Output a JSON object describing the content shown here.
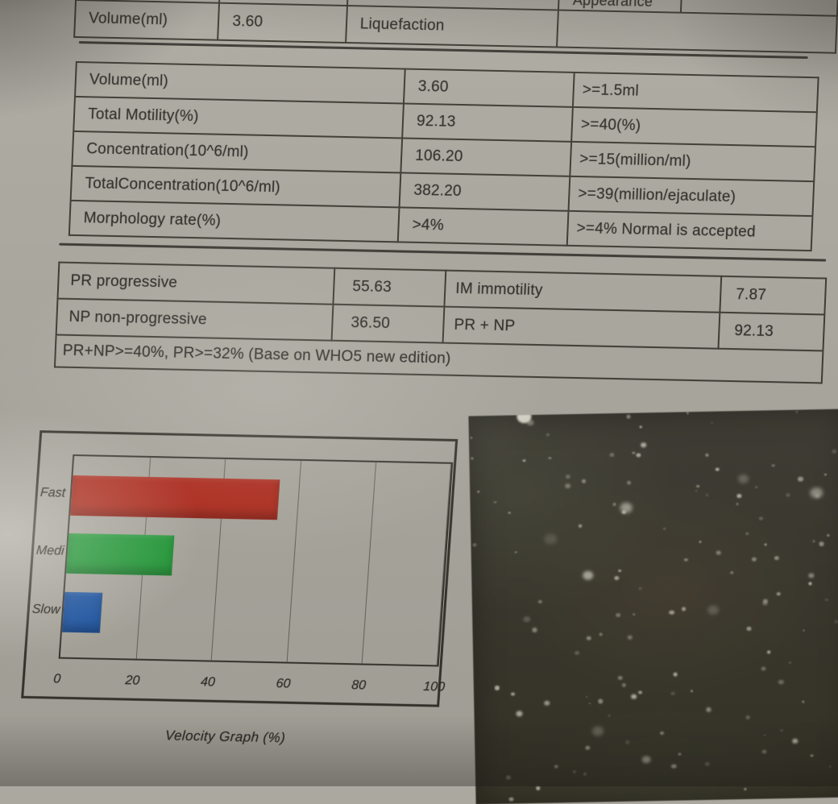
{
  "report": {
    "top_table": {
      "header": {
        "appearance": "Appearance"
      },
      "row": {
        "col1": "Volume(ml)",
        "col2": "3.60",
        "col3": "Liquefaction",
        "col4": ""
      }
    },
    "results_table": {
      "rows": [
        {
          "param": "Volume(ml)",
          "value": "3.60",
          "reference": ">=1.5ml"
        },
        {
          "param": "Total Motility(%)",
          "value": "92.13",
          "reference": ">=40(%)"
        },
        {
          "param": "Concentration(10^6/ml)",
          "value": "106.20",
          "reference": ">=15(million/ml)"
        },
        {
          "param": "TotalConcentration(10^6/ml)",
          "value": "382.20",
          "reference": ">=39(million/ejaculate)"
        },
        {
          "param": "Morphology rate(%)",
          "value": ">4%",
          "reference": ">=4% Normal is accepted"
        }
      ]
    },
    "motility_table": {
      "rows": [
        {
          "param1": "PR progressive",
          "value1": "55.63",
          "param2": "IM immotility",
          "value2": "7.87"
        },
        {
          "param1": "NP non-progressive",
          "value1": "36.50",
          "param2": "PR + NP",
          "value2": "92.13"
        }
      ],
      "footnote": "PR+NP>=40%, PR>=32% (Base on WHO5 new edition)"
    }
  },
  "chart_data": {
    "type": "bar",
    "orientation": "horizontal",
    "title": "Velocity Graph (%)",
    "categories": [
      "Fast",
      "Medi",
      "Slow"
    ],
    "values": [
      55,
      28,
      10
    ],
    "x_ticks": [
      "0",
      "20",
      "40",
      "60",
      "80",
      "100"
    ],
    "xlim": [
      0,
      100
    ],
    "grid": true,
    "legend": false,
    "bar_colors": [
      "#b12a1c",
      "#1f9a35",
      "#1a54a6"
    ]
  }
}
